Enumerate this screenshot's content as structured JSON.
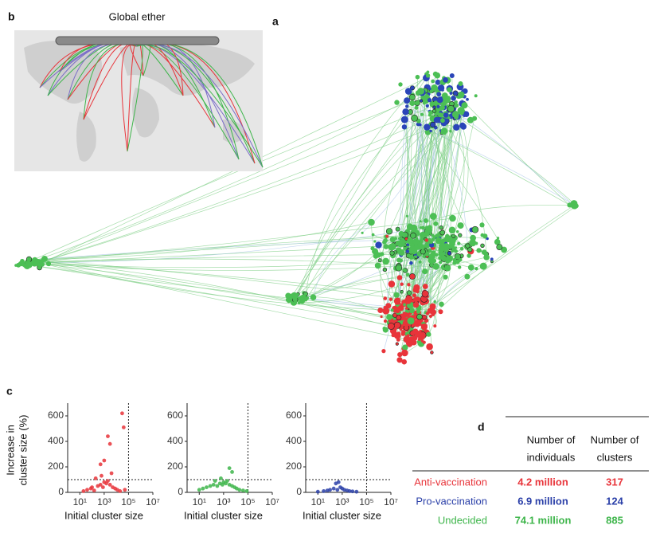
{
  "panels": {
    "a": "a",
    "b": "b",
    "c": "c",
    "d": "d"
  },
  "map": {
    "title": "Global ether"
  },
  "chart_data": [
    {
      "type": "scatter",
      "color": "#e8343a",
      "log_x": true,
      "xlim": [
        1,
        10000000
      ],
      "ylim": [
        0,
        700
      ],
      "xticks": [
        {
          "value": 10,
          "label": "10¹"
        },
        {
          "value": 1000,
          "label": "10³"
        },
        {
          "value": 100000,
          "label": "10⁵"
        },
        {
          "value": 10000000,
          "label": "10⁷"
        }
      ],
      "yticks": [
        0,
        200,
        400,
        600
      ],
      "xlabel": "Initial cluster size",
      "ylabel": [
        "Increase in",
        "cluster size (%)"
      ],
      "reference_lines": {
        "x": 100000,
        "y": 100
      },
      "x": [
        20,
        40,
        80,
        150,
        300,
        500,
        800,
        1000,
        1500,
        2000,
        3000,
        5000,
        8000,
        12000,
        20000,
        500,
        1000,
        2000,
        3000,
        30000,
        40000,
        200,
        600,
        4000,
        100,
        50000
      ],
      "y": [
        10,
        20,
        30,
        15,
        50,
        60,
        40,
        80,
        70,
        90,
        60,
        40,
        30,
        20,
        10,
        220,
        250,
        440,
        380,
        620,
        510,
        110,
        130,
        150,
        40,
        20
      ]
    },
    {
      "type": "scatter",
      "color": "#3db54a",
      "log_x": true,
      "xlim": [
        1,
        10000000
      ],
      "ylim": [
        0,
        700
      ],
      "xticks": [
        {
          "value": 10,
          "label": "10¹"
        },
        {
          "value": 1000,
          "label": "10³"
        },
        {
          "value": 100000,
          "label": "10⁵"
        },
        {
          "value": 10000000,
          "label": "10⁷"
        }
      ],
      "yticks": [
        0,
        200,
        400,
        600
      ],
      "xlabel": "Initial cluster size",
      "reference_lines": {
        "x": 100000,
        "y": 100
      },
      "x": [
        10,
        20,
        40,
        80,
        150,
        300,
        500,
        800,
        1000,
        1500,
        2000,
        3000,
        5000,
        8000,
        12000,
        20000,
        40000,
        80000,
        3000,
        5000,
        600,
        200
      ],
      "y": [
        20,
        30,
        40,
        50,
        60,
        50,
        70,
        60,
        80,
        70,
        90,
        60,
        50,
        40,
        30,
        20,
        15,
        10,
        190,
        160,
        110,
        90
      ]
    },
    {
      "type": "scatter",
      "color": "#2a3fa8",
      "log_x": true,
      "xlim": [
        1,
        10000000
      ],
      "ylim": [
        0,
        700
      ],
      "xticks": [
        {
          "value": 10,
          "label": "10¹"
        },
        {
          "value": 1000,
          "label": "10³"
        },
        {
          "value": 100000,
          "label": "10⁵"
        },
        {
          "value": 10000000,
          "label": "10⁷"
        }
      ],
      "yticks": [
        0,
        200,
        400,
        600
      ],
      "xlabel": "Initial cluster size",
      "reference_lines": {
        "x": 100000,
        "y": 100
      },
      "x": [
        10,
        30,
        60,
        100,
        200,
        400,
        700,
        1000,
        1500,
        2500,
        4000,
        7000,
        15000,
        500,
        300
      ],
      "y": [
        5,
        10,
        15,
        20,
        30,
        20,
        40,
        30,
        20,
        15,
        10,
        8,
        5,
        80,
        70
      ]
    }
  ],
  "table": {
    "headers": [
      [
        "Number of",
        "individuals"
      ],
      [
        "Number of",
        "clusters"
      ]
    ],
    "rows": [
      {
        "label": "Anti-vaccination",
        "individuals": "4.2 million",
        "clusters": "317",
        "color": "#e8343a"
      },
      {
        "label": "Pro-vaccination",
        "individuals": "6.9 million",
        "clusters": "124",
        "color": "#2a3fa8"
      },
      {
        "label": "Undecided",
        "individuals": "74.1 million",
        "clusters": "885",
        "color": "#3db54a"
      }
    ]
  }
}
